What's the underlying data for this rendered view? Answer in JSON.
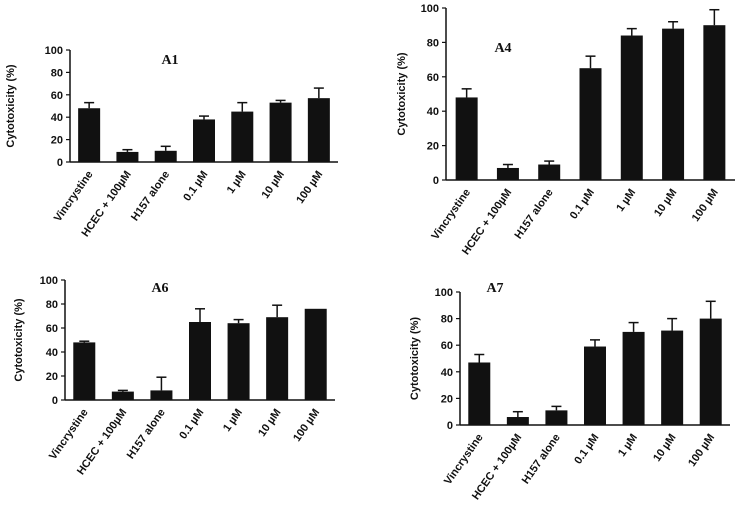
{
  "chart_data": [
    {
      "type": "bar",
      "title": "A1",
      "ylabel": "Cytotoxicity (%)",
      "xlabel": "",
      "ylim": [
        0,
        100
      ],
      "yticks": [
        0,
        20,
        40,
        60,
        80,
        100
      ],
      "categories": [
        "Vincrystine",
        "HCEC + 100µM",
        "H157 alone",
        "0.1 µM",
        "1 µM",
        "10 µM",
        "100 µM"
      ],
      "values": [
        48,
        9,
        10,
        38,
        45,
        53,
        57
      ],
      "errors": [
        5,
        2,
        4,
        3,
        8,
        2,
        9
      ],
      "bar_color": "#111111"
    },
    {
      "type": "bar",
      "title": "A4",
      "ylabel": "Cytotoxicity (%)",
      "xlabel": "",
      "ylim": [
        0,
        100
      ],
      "yticks": [
        0,
        20,
        40,
        60,
        80,
        100
      ],
      "categories": [
        "Vincrystine",
        "HCEC + 100µM",
        "H157 alone",
        "0.1 µM",
        "1 µM",
        "10 µM",
        "100 µM"
      ],
      "values": [
        48,
        7,
        9,
        65,
        84,
        88,
        90
      ],
      "errors": [
        5,
        2,
        2,
        7,
        4,
        4,
        9
      ],
      "bar_color": "#111111"
    },
    {
      "type": "bar",
      "title": "A6",
      "ylabel": "Cytotoxicity (%)",
      "xlabel": "",
      "ylim": [
        0,
        100
      ],
      "yticks": [
        0,
        20,
        40,
        60,
        80,
        100
      ],
      "categories": [
        "Vincrystine",
        "HCEC + 100µM",
        "H157 alone",
        "0.1 µM",
        "1 µM",
        "10 µM",
        "100 µM"
      ],
      "values": [
        48,
        7,
        8,
        65,
        64,
        69,
        76
      ],
      "errors": [
        1,
        1,
        11,
        11,
        3,
        10,
        0
      ],
      "bar_color": "#111111"
    },
    {
      "type": "bar",
      "title": "A7",
      "ylabel": "Cytotoxicity (%)",
      "xlabel": "",
      "ylim": [
        0,
        100
      ],
      "yticks": [
        0,
        20,
        40,
        60,
        80,
        100
      ],
      "categories": [
        "Vincrystine",
        "HCEC + 100µM",
        "H157 alone",
        "0.1 µM",
        "1 µM",
        "10 µM",
        "100 µM"
      ],
      "values": [
        47,
        6,
        11,
        59,
        70,
        71,
        80
      ],
      "errors": [
        6,
        4,
        3,
        5,
        7,
        9,
        13
      ],
      "bar_color": "#111111"
    }
  ]
}
